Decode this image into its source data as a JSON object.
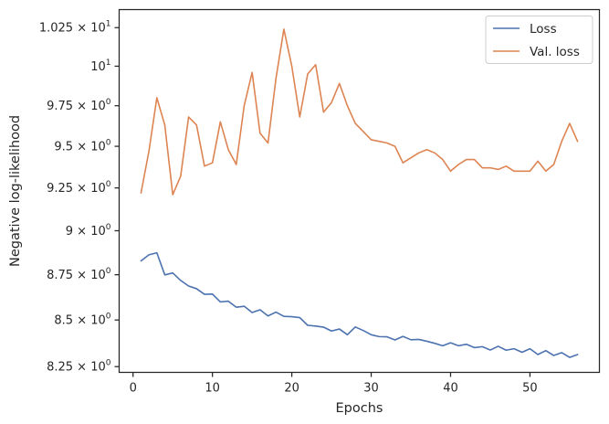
{
  "chart_data": {
    "type": "line",
    "xlabel": "Epochs",
    "ylabel": "Negative log-likelihood",
    "xlim": [
      -1.75,
      58.75
    ],
    "ylim": [
      8.2196,
      10.3691
    ],
    "yscale": "log",
    "grid": false,
    "legend_position": "top-right",
    "x_ticks": [
      0,
      10,
      20,
      30,
      40,
      50
    ],
    "x_tick_labels": [
      "0",
      "10",
      "20",
      "30",
      "40",
      "50"
    ],
    "y_ticks": [
      8.25,
      8.5,
      8.75,
      9.0,
      9.25,
      9.5,
      9.75,
      10.0,
      10.25
    ],
    "y_tick_labels": [
      {
        "base": "8.25 × 10",
        "exp": "0"
      },
      {
        "base": "8.5 × 10",
        "exp": "0"
      },
      {
        "base": "8.75 × 10",
        "exp": "0"
      },
      {
        "base": "9 × 10",
        "exp": "0"
      },
      {
        "base": "9.25 × 10",
        "exp": "0"
      },
      {
        "base": "9.5 × 10",
        "exp": "0"
      },
      {
        "base": "9.75 × 10",
        "exp": "0"
      },
      {
        "base": "10",
        "exp": "1"
      },
      {
        "base": "1.025 × 10",
        "exp": "1"
      }
    ],
    "x": [
      1,
      2,
      3,
      4,
      5,
      6,
      7,
      8,
      9,
      10,
      11,
      12,
      13,
      14,
      15,
      16,
      17,
      18,
      19,
      20,
      21,
      22,
      23,
      24,
      25,
      26,
      27,
      28,
      29,
      30,
      31,
      32,
      33,
      34,
      35,
      36,
      37,
      38,
      39,
      40,
      41,
      42,
      43,
      44,
      45,
      46,
      47,
      48,
      49,
      50,
      51,
      52,
      53,
      54,
      55,
      56
    ],
    "series": [
      {
        "name": "Loss",
        "color": "#4c72b0",
        "values": [
          8.828,
          8.862,
          8.874,
          8.749,
          8.76,
          8.718,
          8.687,
          8.672,
          8.641,
          8.642,
          8.599,
          8.603,
          8.57,
          8.575,
          8.541,
          8.556,
          8.522,
          8.543,
          8.52,
          8.518,
          8.513,
          8.471,
          8.467,
          8.461,
          8.44,
          8.451,
          8.42,
          8.462,
          8.443,
          8.42,
          8.41,
          8.409,
          8.392,
          8.411,
          8.393,
          8.395,
          8.385,
          8.374,
          8.361,
          8.377,
          8.361,
          8.369,
          8.351,
          8.356,
          8.338,
          8.358,
          8.337,
          8.345,
          8.326,
          8.345,
          8.314,
          8.335,
          8.309,
          8.324,
          8.299,
          8.314
        ]
      },
      {
        "name": "Val. loss",
        "color": "#dd8452",
        "values": [
          9.22,
          9.47,
          9.8,
          9.63,
          9.21,
          9.32,
          9.68,
          9.63,
          9.38,
          9.4,
          9.65,
          9.48,
          9.39,
          9.75,
          9.96,
          9.58,
          9.52,
          9.92,
          10.24,
          10.0,
          9.68,
          9.95,
          10.01,
          9.71,
          9.77,
          9.89,
          9.75,
          9.64,
          9.59,
          9.54,
          9.53,
          9.52,
          9.5,
          9.4,
          9.43,
          9.46,
          9.48,
          9.46,
          9.42,
          9.35,
          9.39,
          9.42,
          9.42,
          9.37,
          9.37,
          9.36,
          9.38,
          9.35,
          9.35,
          9.35,
          9.41,
          9.35,
          9.39,
          9.53,
          9.64,
          9.53
        ]
      }
    ]
  }
}
